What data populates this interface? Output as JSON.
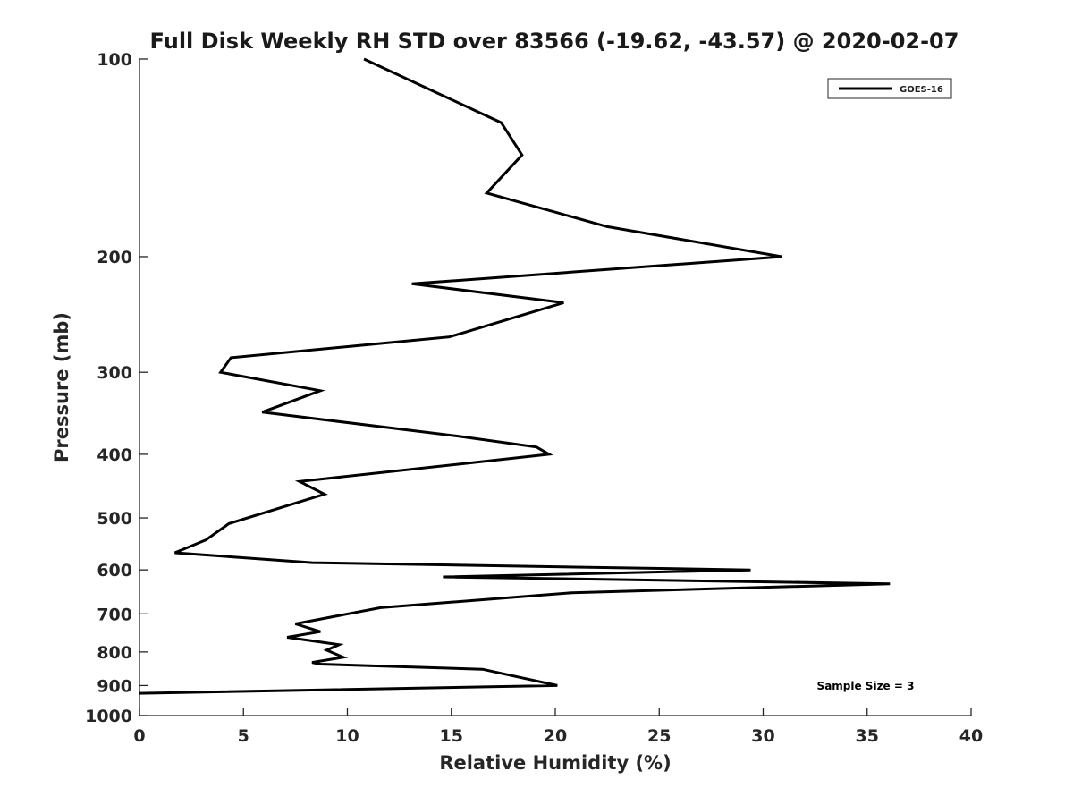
{
  "chart_data": {
    "type": "line",
    "title": "Full Disk Weekly RH STD over 83566 (-19.62, -43.57) @ 2020-02-07",
    "xlabel": "Relative Humidity (%)",
    "ylabel": "Pressure (mb)",
    "xlim": [
      0,
      40
    ],
    "ylim": [
      100,
      1000
    ],
    "yscale": "log-reversed",
    "x_ticks": [
      "0",
      "5",
      "10",
      "15",
      "20",
      "25",
      "30",
      "35",
      "40"
    ],
    "y_ticks": [
      "100",
      "200",
      "300",
      "400",
      "500",
      "600",
      "700",
      "800",
      "900",
      "1000"
    ],
    "grid": false,
    "legend_position": "top-right",
    "annotation": "Sample Size = 3",
    "series": [
      {
        "name": "GOES-16",
        "color": "#000000",
        "x": [
          10.8,
          17.4,
          18.4,
          16.7,
          22.5,
          30.9,
          13.1,
          20.4,
          14.9,
          4.4,
          3.9,
          8.7,
          5.9,
          15.2,
          19.1,
          19.7,
          7.7,
          8.9,
          4.3,
          3.2,
          1.7,
          8.3,
          29.4,
          14.6,
          36.1,
          20.8,
          11.6,
          7.5,
          8.7,
          7.1,
          9.6,
          9.0,
          9.8,
          8.3,
          8.7,
          16.5,
          20.1,
          0.0
        ],
        "y": [
          100,
          125,
          140,
          160,
          180,
          200,
          220,
          235,
          265,
          285,
          300,
          320,
          345,
          375,
          390,
          400,
          440,
          460,
          510,
          540,
          565,
          585,
          600,
          615,
          630,
          650,
          685,
          725,
          745,
          760,
          780,
          795,
          815,
          830,
          835,
          850,
          900,
          925
        ]
      }
    ]
  }
}
